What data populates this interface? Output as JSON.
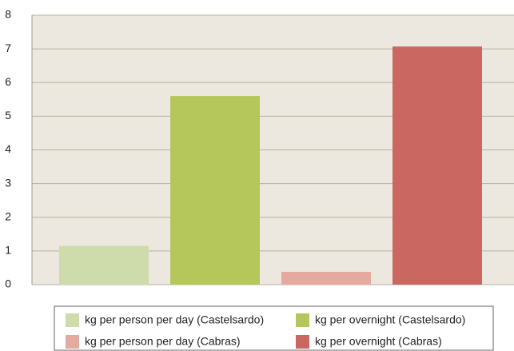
{
  "chart_data": {
    "type": "bar",
    "categories": [
      null
    ],
    "series": [
      {
        "name": "kg per person per day (Castelsardo)",
        "color": "#cddcaa",
        "values": [
          1.15
        ]
      },
      {
        "name": "kg per overnight (Castelsardo)",
        "color": "#b5c75a",
        "values": [
          5.6
        ]
      },
      {
        "name": "kg per person per day (Cabras)",
        "color": "#e4aaa0",
        "values": [
          0.38
        ]
      },
      {
        "name": "kg per overnight (Cabras)",
        "color": "#cb6761",
        "values": [
          7.07
        ]
      }
    ],
    "ylim": [
      0,
      8
    ],
    "yticks": [
      0,
      1,
      2,
      3,
      4,
      5,
      6,
      7,
      8
    ],
    "grid": true,
    "legend": "bottom"
  }
}
